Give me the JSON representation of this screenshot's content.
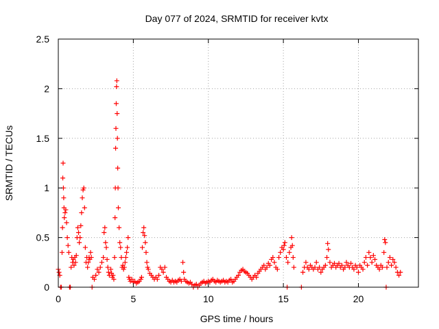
{
  "chart_data": {
    "type": "scatter",
    "title": "Day 077 of 2024, SRMTID for receiver kvtx",
    "xlabel": "GPS time / hours",
    "ylabel": "SRMTID / TECUs",
    "xlim": [
      0,
      24
    ],
    "ylim": [
      0,
      2.5
    ],
    "x_ticks": [
      0,
      5,
      10,
      15,
      20
    ],
    "x_tick_labels": [
      "0",
      "5",
      "10",
      "15",
      "20"
    ],
    "y_ticks": [
      0,
      0.5,
      1,
      1.5,
      2,
      2.5
    ],
    "y_tick_labels": [
      "0",
      "0.5",
      "1",
      "1.5",
      "2",
      "2.5"
    ],
    "grid": true,
    "marker": "+",
    "color": "#ff0000",
    "series": [
      {
        "name": "SRMTID",
        "points": [
          [
            0.0,
            0.18
          ],
          [
            0.05,
            0.15
          ],
          [
            0.1,
            0.12
          ],
          [
            0.15,
            0.0
          ],
          [
            0.2,
            0.0
          ],
          [
            0.25,
            0.35
          ],
          [
            0.28,
            0.6
          ],
          [
            0.3,
            1.1
          ],
          [
            0.32,
            1.25
          ],
          [
            0.34,
            1.0
          ],
          [
            0.36,
            0.9
          ],
          [
            0.38,
            0.8
          ],
          [
            0.4,
            0.7
          ],
          [
            0.45,
            0.75
          ],
          [
            0.5,
            0.78
          ],
          [
            0.55,
            0.65
          ],
          [
            0.6,
            0.5
          ],
          [
            0.65,
            0.42
          ],
          [
            0.7,
            0.35
          ],
          [
            0.75,
            0.0
          ],
          [
            0.8,
            0.0
          ],
          [
            0.85,
            0.2
          ],
          [
            0.9,
            0.3
          ],
          [
            0.95,
            0.25
          ],
          [
            1.0,
            0.28
          ],
          [
            1.05,
            0.22
          ],
          [
            1.1,
            0.3
          ],
          [
            1.15,
            0.25
          ],
          [
            1.2,
            0.32
          ],
          [
            1.25,
            0.5
          ],
          [
            1.3,
            0.6
          ],
          [
            1.35,
            0.55
          ],
          [
            1.4,
            0.45
          ],
          [
            1.45,
            0.5
          ],
          [
            1.5,
            0.62
          ],
          [
            1.55,
            0.75
          ],
          [
            1.6,
            0.9
          ],
          [
            1.65,
            0.98
          ],
          [
            1.7,
            1.0
          ],
          [
            1.75,
            0.8
          ],
          [
            1.8,
            0.4
          ],
          [
            1.85,
            0.25
          ],
          [
            1.9,
            0.3
          ],
          [
            1.95,
            0.2
          ],
          [
            2.0,
            0.25
          ],
          [
            2.05,
            0.3
          ],
          [
            2.1,
            0.28
          ],
          [
            2.15,
            0.35
          ],
          [
            2.2,
            0.3
          ],
          [
            2.25,
            0.0
          ],
          [
            2.3,
            0.1
          ],
          [
            2.4,
            0.08
          ],
          [
            2.5,
            0.12
          ],
          [
            2.6,
            0.18
          ],
          [
            2.7,
            0.15
          ],
          [
            2.8,
            0.2
          ],
          [
            2.9,
            0.25
          ],
          [
            3.0,
            0.3
          ],
          [
            3.05,
            0.55
          ],
          [
            3.1,
            0.6
          ],
          [
            3.15,
            0.45
          ],
          [
            3.2,
            0.4
          ],
          [
            3.25,
            0.28
          ],
          [
            3.3,
            0.2
          ],
          [
            3.35,
            0.15
          ],
          [
            3.4,
            0.12
          ],
          [
            3.5,
            0.18
          ],
          [
            3.55,
            0.14
          ],
          [
            3.6,
            0.1
          ],
          [
            3.65,
            0.12
          ],
          [
            3.7,
            0.08
          ],
          [
            3.75,
            0.3
          ],
          [
            3.78,
            0.7
          ],
          [
            3.8,
            1.0
          ],
          [
            3.82,
            1.4
          ],
          [
            3.84,
            1.6
          ],
          [
            3.86,
            1.85
          ],
          [
            3.88,
            2.02
          ],
          [
            3.9,
            2.08
          ],
          [
            3.92,
            1.75
          ],
          [
            3.94,
            1.5
          ],
          [
            3.96,
            1.2
          ],
          [
            3.98,
            1.0
          ],
          [
            4.0,
            0.8
          ],
          [
            4.05,
            0.6
          ],
          [
            4.1,
            0.45
          ],
          [
            4.15,
            0.4
          ],
          [
            4.2,
            0.3
          ],
          [
            4.25,
            0.2
          ],
          [
            4.3,
            0.22
          ],
          [
            4.35,
            0.18
          ],
          [
            4.4,
            0.2
          ],
          [
            4.45,
            0.25
          ],
          [
            4.5,
            0.3
          ],
          [
            4.55,
            0.35
          ],
          [
            4.6,
            0.4
          ],
          [
            4.65,
            0.5
          ],
          [
            4.7,
            0.1
          ],
          [
            4.75,
            0.08
          ],
          [
            4.8,
            0.06
          ],
          [
            4.9,
            0.08
          ],
          [
            5.0,
            0.05
          ],
          [
            5.1,
            0.06
          ],
          [
            5.2,
            0.04
          ],
          [
            5.3,
            0.05
          ],
          [
            5.4,
            0.06
          ],
          [
            5.5,
            0.08
          ],
          [
            5.55,
            0.1
          ],
          [
            5.6,
            0.4
          ],
          [
            5.65,
            0.55
          ],
          [
            5.7,
            0.6
          ],
          [
            5.75,
            0.52
          ],
          [
            5.8,
            0.45
          ],
          [
            5.85,
            0.35
          ],
          [
            5.9,
            0.25
          ],
          [
            5.95,
            0.2
          ],
          [
            6.0,
            0.18
          ],
          [
            6.1,
            0.14
          ],
          [
            6.2,
            0.12
          ],
          [
            6.3,
            0.1
          ],
          [
            6.4,
            0.08
          ],
          [
            6.5,
            0.1
          ],
          [
            6.6,
            0.08
          ],
          [
            6.7,
            0.12
          ],
          [
            6.8,
            0.2
          ],
          [
            6.9,
            0.18
          ],
          [
            7.0,
            0.15
          ],
          [
            7.1,
            0.2
          ],
          [
            7.2,
            0.1
          ],
          [
            7.3,
            0.08
          ],
          [
            7.4,
            0.06
          ],
          [
            7.5,
            0.05
          ],
          [
            7.6,
            0.07
          ],
          [
            7.7,
            0.05
          ],
          [
            7.8,
            0.06
          ],
          [
            7.9,
            0.05
          ],
          [
            8.0,
            0.07
          ],
          [
            8.1,
            0.08
          ],
          [
            8.2,
            0.06
          ],
          [
            8.3,
            0.25
          ],
          [
            8.35,
            0.15
          ],
          [
            8.4,
            0.08
          ],
          [
            8.5,
            0.06
          ],
          [
            8.6,
            0.05
          ],
          [
            8.7,
            0.04
          ],
          [
            8.8,
            0.05
          ],
          [
            8.9,
            0.03
          ],
          [
            9.0,
            0.0
          ],
          [
            9.1,
            0.02
          ],
          [
            9.2,
            0.03
          ],
          [
            9.3,
            0.0
          ],
          [
            9.4,
            0.02
          ],
          [
            9.5,
            0.04
          ],
          [
            9.6,
            0.05
          ],
          [
            9.7,
            0.06
          ],
          [
            9.8,
            0.04
          ],
          [
            9.9,
            0.05
          ],
          [
            10.0,
            0.06
          ],
          [
            10.1,
            0.05
          ],
          [
            10.2,
            0.07
          ],
          [
            10.3,
            0.08
          ],
          [
            10.4,
            0.06
          ],
          [
            10.5,
            0.05
          ],
          [
            10.6,
            0.07
          ],
          [
            10.7,
            0.06
          ],
          [
            10.8,
            0.05
          ],
          [
            10.9,
            0.06
          ],
          [
            11.0,
            0.07
          ],
          [
            11.1,
            0.05
          ],
          [
            11.2,
            0.06
          ],
          [
            11.3,
            0.05
          ],
          [
            11.4,
            0.07
          ],
          [
            11.5,
            0.08
          ],
          [
            11.6,
            0.05
          ],
          [
            11.7,
            0.06
          ],
          [
            11.8,
            0.08
          ],
          [
            11.9,
            0.1
          ],
          [
            12.0,
            0.12
          ],
          [
            12.1,
            0.15
          ],
          [
            12.2,
            0.17
          ],
          [
            12.3,
            0.18
          ],
          [
            12.4,
            0.16
          ],
          [
            12.5,
            0.15
          ],
          [
            12.6,
            0.14
          ],
          [
            12.7,
            0.12
          ],
          [
            12.8,
            0.1
          ],
          [
            12.9,
            0.08
          ],
          [
            13.0,
            0.1
          ],
          [
            13.1,
            0.12
          ],
          [
            13.2,
            0.1
          ],
          [
            13.3,
            0.14
          ],
          [
            13.4,
            0.16
          ],
          [
            13.5,
            0.18
          ],
          [
            13.6,
            0.2
          ],
          [
            13.7,
            0.22
          ],
          [
            13.8,
            0.18
          ],
          [
            13.9,
            0.2
          ],
          [
            14.0,
            0.24
          ],
          [
            14.1,
            0.22
          ],
          [
            14.2,
            0.28
          ],
          [
            14.3,
            0.3
          ],
          [
            14.4,
            0.25
          ],
          [
            14.5,
            0.2
          ],
          [
            14.6,
            0.18
          ],
          [
            14.7,
            0.3
          ],
          [
            14.8,
            0.35
          ],
          [
            14.9,
            0.4
          ],
          [
            15.0,
            0.38
          ],
          [
            15.05,
            0.42
          ],
          [
            15.1,
            0.45
          ],
          [
            15.2,
            0.3
          ],
          [
            15.25,
            0.0
          ],
          [
            15.3,
            0.25
          ],
          [
            15.4,
            0.35
          ],
          [
            15.5,
            0.4
          ],
          [
            15.55,
            0.5
          ],
          [
            15.6,
            0.42
          ],
          [
            15.65,
            0.3
          ],
          [
            15.7,
            0.2
          ],
          [
            16.2,
            0.0
          ],
          [
            16.3,
            0.15
          ],
          [
            16.4,
            0.2
          ],
          [
            16.5,
            0.25
          ],
          [
            16.6,
            0.2
          ],
          [
            16.7,
            0.18
          ],
          [
            16.8,
            0.22
          ],
          [
            16.9,
            0.2
          ],
          [
            17.0,
            0.18
          ],
          [
            17.1,
            0.2
          ],
          [
            17.2,
            0.25
          ],
          [
            17.3,
            0.18
          ],
          [
            17.4,
            0.2
          ],
          [
            17.5,
            0.15
          ],
          [
            17.6,
            0.18
          ],
          [
            17.7,
            0.2
          ],
          [
            17.8,
            0.22
          ],
          [
            17.9,
            0.3
          ],
          [
            17.95,
            0.44
          ],
          [
            18.0,
            0.38
          ],
          [
            18.1,
            0.25
          ],
          [
            18.2,
            0.2
          ],
          [
            18.3,
            0.22
          ],
          [
            18.4,
            0.24
          ],
          [
            18.5,
            0.2
          ],
          [
            18.6,
            0.22
          ],
          [
            18.7,
            0.24
          ],
          [
            18.8,
            0.2
          ],
          [
            18.9,
            0.22
          ],
          [
            19.0,
            0.18
          ],
          [
            19.1,
            0.2
          ],
          [
            19.2,
            0.25
          ],
          [
            19.3,
            0.22
          ],
          [
            19.4,
            0.2
          ],
          [
            19.5,
            0.24
          ],
          [
            19.6,
            0.2
          ],
          [
            19.7,
            0.18
          ],
          [
            19.8,
            0.22
          ],
          [
            19.9,
            0.2
          ],
          [
            20.0,
            0.15
          ],
          [
            20.1,
            0.22
          ],
          [
            20.2,
            0.2
          ],
          [
            20.3,
            0.18
          ],
          [
            20.4,
            0.25
          ],
          [
            20.5,
            0.3
          ],
          [
            20.6,
            0.22
          ],
          [
            20.7,
            0.35
          ],
          [
            20.8,
            0.3
          ],
          [
            20.9,
            0.25
          ],
          [
            21.0,
            0.32
          ],
          [
            21.1,
            0.28
          ],
          [
            21.2,
            0.22
          ],
          [
            21.3,
            0.2
          ],
          [
            21.4,
            0.18
          ],
          [
            21.5,
            0.22
          ],
          [
            21.6,
            0.2
          ],
          [
            21.7,
            0.35
          ],
          [
            21.75,
            0.48
          ],
          [
            21.8,
            0.45
          ],
          [
            21.85,
            0.0
          ],
          [
            21.9,
            0.2
          ],
          [
            22.0,
            0.25
          ],
          [
            22.1,
            0.3
          ],
          [
            22.2,
            0.22
          ],
          [
            22.3,
            0.28
          ],
          [
            22.4,
            0.25
          ],
          [
            22.5,
            0.2
          ],
          [
            22.6,
            0.15
          ],
          [
            22.7,
            0.12
          ],
          [
            22.8,
            0.15
          ]
        ]
      }
    ]
  }
}
